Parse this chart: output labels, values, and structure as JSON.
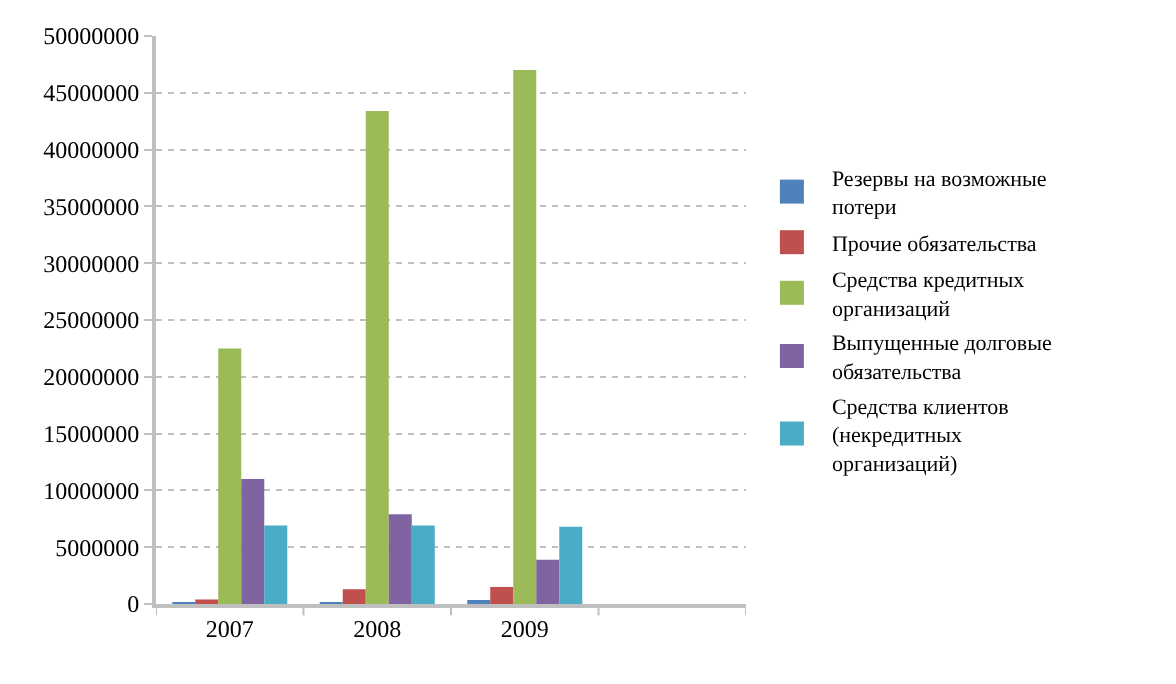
{
  "chart_data": {
    "type": "bar",
    "categories": [
      "2007",
      "2008",
      "2009",
      null
    ],
    "series": [
      {
        "name": "Резервы на возможные потери",
        "color": "#4f81bd",
        "values": [
          100000,
          100000,
          300000,
          null
        ]
      },
      {
        "name": "Прочие обязательства",
        "color": "#c0504d",
        "values": [
          400000,
          1300000,
          1500000,
          null
        ]
      },
      {
        "name": "Средства кредитных организаций",
        "color": "#9bbb59",
        "values": [
          22500000,
          43400000,
          47000000,
          null
        ]
      },
      {
        "name": "Выпущенные долговые обязательства",
        "color": "#8064a2",
        "values": [
          11000000,
          7900000,
          3900000,
          null
        ]
      },
      {
        "name": "Средства клиентов (некредитных организаций)",
        "color": "#4bacc6",
        "values": [
          6900000,
          6900000,
          6800000,
          null
        ]
      }
    ],
    "ylim": [
      0,
      50000000
    ],
    "yticks": [
      0,
      5000000,
      10000000,
      15000000,
      20000000,
      25000000,
      30000000,
      35000000,
      40000000,
      45000000,
      50000000
    ],
    "grid": "y",
    "legend": "right"
  }
}
